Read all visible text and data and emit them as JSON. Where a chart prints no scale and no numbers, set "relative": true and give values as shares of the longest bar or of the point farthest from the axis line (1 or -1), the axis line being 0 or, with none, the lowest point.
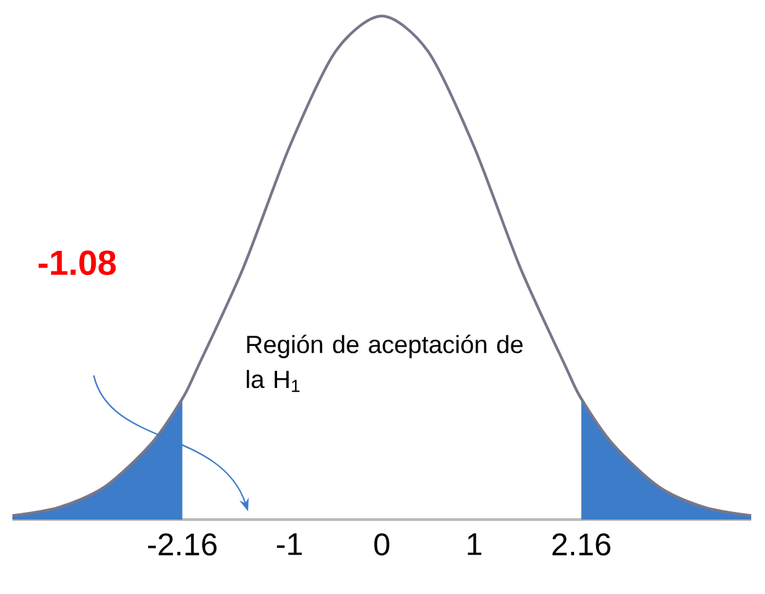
{
  "chart_data": {
    "type": "line",
    "relative": true,
    "series": [
      {
        "color": "#77778a",
        "x": [
          -4,
          -3.5,
          -3,
          -2.5,
          -2.16,
          -2,
          -1.5,
          -1,
          -0.5,
          0,
          0.5,
          1,
          1.5,
          2,
          2.16,
          2.5,
          3,
          3.5,
          4
        ],
        "values": [
          0.008,
          0.024,
          0.065,
          0.15,
          0.24,
          0.3,
          0.5,
          0.74,
          0.93,
          1,
          0.93,
          0.74,
          0.5,
          0.3,
          0.24,
          0.15,
          0.065,
          0.024,
          0.008
        ]
      },
      {
        "type": "area",
        "color": "#3d7cc9",
        "x": [
          -4,
          -3.5,
          -3,
          -2.5,
          -2.16
        ],
        "values": [
          0.008,
          0.024,
          0.065,
          0.15,
          0.24
        ]
      },
      {
        "type": "area",
        "color": "#3d7cc9",
        "x": [
          2.16,
          2.5,
          3,
          3.5,
          4
        ],
        "values": [
          0.24,
          0.15,
          0.065,
          0.024,
          0.008
        ]
      }
    ],
    "xlim": [
      -4,
      4
    ],
    "xticks": [
      -2.16,
      -1,
      0,
      1,
      2.16
    ],
    "annotations": [
      "**-1.08**",
      "Región de aceptación de la H$_{1}$"
    ]
  }
}
